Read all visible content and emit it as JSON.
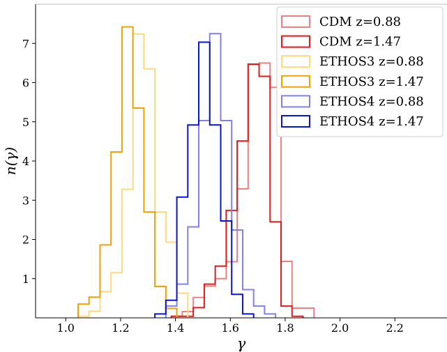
{
  "chart_data": {
    "type": "histogram",
    "xlabel": "γ",
    "ylabel": "n(γ)",
    "xlim": [
      0.89,
      2.39
    ],
    "ylim": [
      0,
      8.0
    ],
    "xticks": [
      1.0,
      1.2,
      1.4,
      1.6,
      1.8,
      2.0,
      2.2
    ],
    "xtick_labels": [
      "1.0",
      "1.2",
      "1.4",
      "1.6",
      "1.8",
      "2.0",
      "2.2"
    ],
    "yticks": [
      1,
      2,
      3,
      4,
      5,
      6,
      7
    ],
    "ytick_labels": [
      "1",
      "2",
      "3",
      "4",
      "5",
      "6",
      "7"
    ],
    "grid": false,
    "legend_position": "top-right",
    "series": [
      {
        "name": "CDM z=0.88",
        "color": "#f08080",
        "edges": [
          1.385,
          1.425,
          1.465,
          1.505,
          1.545,
          1.585,
          1.625,
          1.665,
          1.705,
          1.745,
          1.785,
          1.825,
          1.865,
          1.905
        ],
        "values": [
          0.04,
          0.16,
          0.52,
          0.81,
          1.0,
          1.43,
          3.29,
          6.46,
          6.5,
          5.88,
          1.44,
          0.25,
          0.25
        ]
      },
      {
        "name": "CDM z=1.47",
        "color": "#e41a1c",
        "edges": [
          1.385,
          1.425,
          1.465,
          1.505,
          1.545,
          1.585,
          1.625,
          1.665,
          1.705,
          1.745,
          1.785,
          1.825,
          1.865
        ],
        "values": [
          0.04,
          0.04,
          0.26,
          0.86,
          1.32,
          2.74,
          4.51,
          6.47,
          6.16,
          2.45,
          0.3,
          0.04
        ]
      },
      {
        "name": "ETHOS3 z=0.88",
        "color": "#ffd97a",
        "edges": [
          1.045,
          1.085,
          1.125,
          1.165,
          1.205,
          1.245,
          1.285,
          1.325,
          1.365,
          1.405,
          1.445
        ],
        "values": [
          0.04,
          0.17,
          0.67,
          1.15,
          3.28,
          7.24,
          6.35,
          2.7,
          1.93,
          0.63
        ]
      },
      {
        "name": "ETHOS3 z=1.47",
        "color": "#f5a000",
        "edges": [
          1.045,
          1.085,
          1.125,
          1.165,
          1.205,
          1.245,
          1.285,
          1.325,
          1.365,
          1.405
        ],
        "values": [
          0.35,
          0.53,
          1.86,
          4.23,
          7.42,
          5.35,
          2.7,
          0.8,
          0.24
        ]
      },
      {
        "name": "ETHOS4 z=0.88",
        "color": "#8080ee",
        "edges": [
          1.365,
          1.405,
          1.445,
          1.485,
          1.525,
          1.565,
          1.605,
          1.645,
          1.685,
          1.725,
          1.765
        ],
        "values": [
          0.3,
          0.86,
          2.32,
          5.03,
          7.25,
          5.03,
          2.24,
          0.72,
          0.3,
          0.1
        ]
      },
      {
        "name": "ETHOS4 z=1.47",
        "color": "#0a14d8",
        "edges": [
          1.325,
          1.365,
          1.405,
          1.445,
          1.485,
          1.525,
          1.565,
          1.605,
          1.645,
          1.685
        ],
        "values": [
          0.1,
          0.45,
          3.08,
          4.92,
          7.03,
          4.92,
          2.47,
          0.6,
          0.1
        ]
      }
    ]
  }
}
